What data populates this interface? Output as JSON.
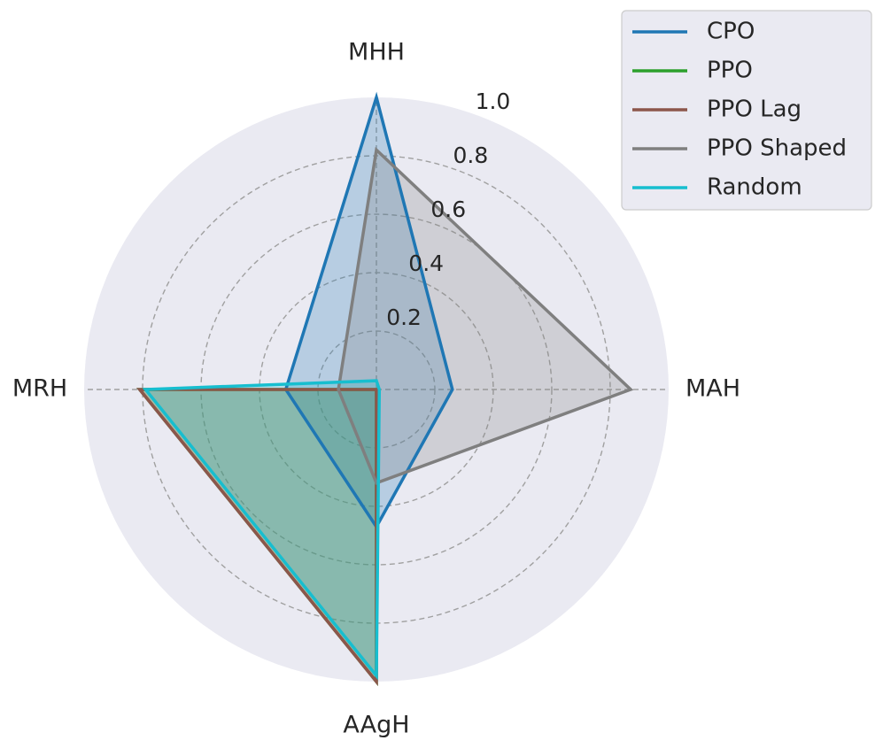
{
  "chart_data": {
    "type": "radar",
    "axes": [
      "MHH",
      "MAH",
      "AAgH",
      "MRH"
    ],
    "rlim": [
      0,
      1.0
    ],
    "radial_ticks": [
      0.2,
      0.4,
      0.6,
      0.8,
      1.0
    ],
    "radial_tick_labels": [
      "0.2",
      "0.4",
      "0.6",
      "0.8",
      "1.0"
    ],
    "grid": true,
    "legend_position": "top-right",
    "series": [
      {
        "name": "CPO",
        "values": [
          1.0,
          0.26,
          0.47,
          0.31
        ],
        "color": "#1f77b4",
        "filled": true
      },
      {
        "name": "PPO",
        "values": [
          0.0,
          0.0,
          1.0,
          0.81
        ],
        "color": "#2ca02c",
        "filled": true
      },
      {
        "name": "PPO Lag",
        "values": [
          0.0,
          0.0,
          1.0,
          0.81
        ],
        "color": "#8c564b",
        "filled": true
      },
      {
        "name": "PPO Shaped",
        "values": [
          0.82,
          0.87,
          0.32,
          0.13
        ],
        "color": "#7f7f7f",
        "filled": true
      },
      {
        "name": "Random",
        "values": [
          0.03,
          0.01,
          0.98,
          0.79
        ],
        "color": "#17becf",
        "filled": true
      }
    ]
  }
}
